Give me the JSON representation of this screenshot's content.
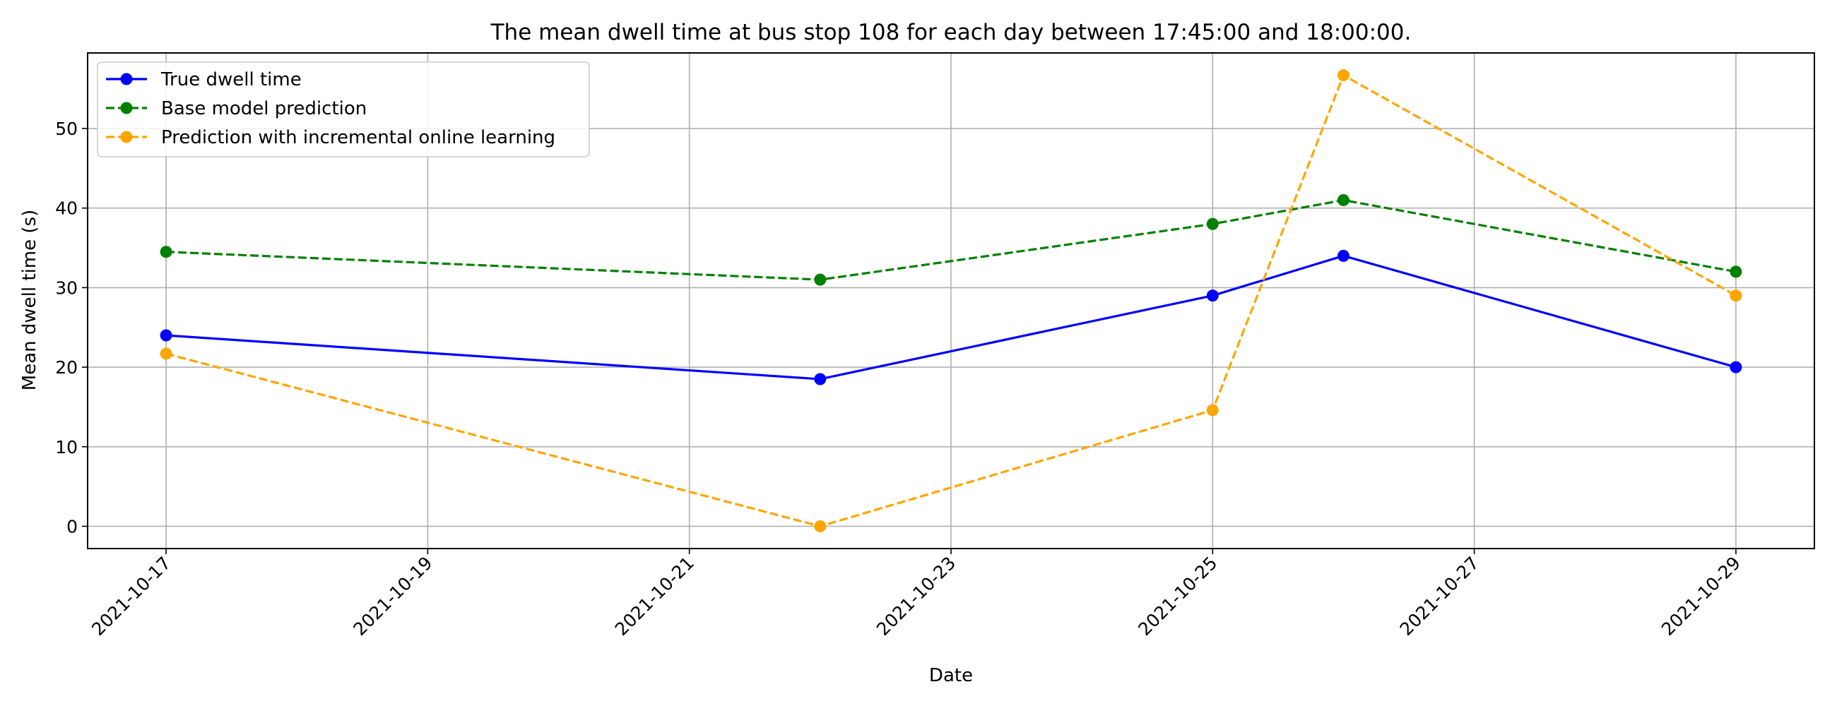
{
  "chart_data": {
    "type": "line",
    "title": "The mean dwell time at bus stop 108 for each day between 17:45:00 and 18:00:00.",
    "xlabel": "Date",
    "ylabel": "Mean dwell time (s)",
    "x_ticks": [
      "2021-10-17",
      "2021-10-19",
      "2021-10-21",
      "2021-10-23",
      "2021-10-25",
      "2021-10-27",
      "2021-10-29"
    ],
    "y_ticks": [
      0,
      10,
      20,
      30,
      40,
      50
    ],
    "xlim": [
      "2021-10-16.4",
      "2021-10-29.6"
    ],
    "ylim": [
      -2.8,
      59.5
    ],
    "grid": true,
    "legend_position": "top-left",
    "x": [
      "2021-10-17",
      "2021-10-22",
      "2021-10-25",
      "2021-10-26",
      "2021-10-29"
    ],
    "series": [
      {
        "name": "True dwell time",
        "values": [
          24,
          18.5,
          29,
          34,
          20
        ],
        "color": "#0000ff",
        "linestyle": "solid",
        "marker": "circle"
      },
      {
        "name": "Base model prediction",
        "values": [
          34.5,
          31,
          38,
          41,
          32
        ],
        "color": "#008000",
        "linestyle": "dashed",
        "marker": "circle"
      },
      {
        "name": "Prediction with incremental online learning",
        "values": [
          21.7,
          0,
          14.6,
          56.7,
          29
        ],
        "color": "#ffa500",
        "linestyle": "dashed",
        "marker": "circle"
      }
    ]
  }
}
